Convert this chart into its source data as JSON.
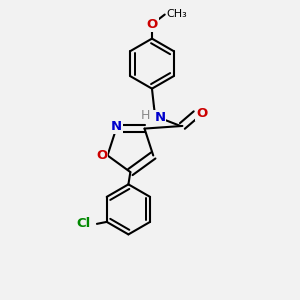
{
  "bg_color": "#f2f2f2",
  "bond_color": "#000000",
  "bond_width": 1.5,
  "atom_colors": {
    "N": "#0000cc",
    "O": "#cc0000",
    "Cl": "#008800",
    "C": "#000000"
  },
  "font_size": 9.5,
  "fig_size": [
    3.0,
    3.0
  ],
  "dpi": 100
}
